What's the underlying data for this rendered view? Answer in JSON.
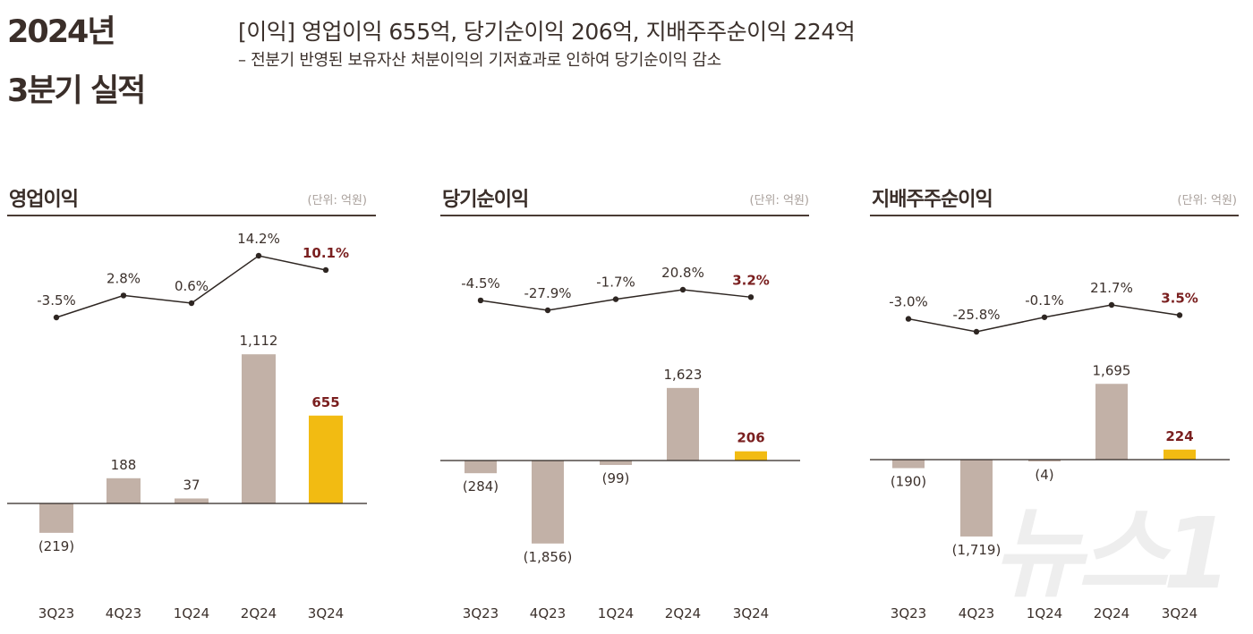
{
  "header": {
    "title_line1": "2024년",
    "title_line2": "3분기 실적",
    "headline": "[이익] 영업이익 655억,  당기순이익 206억, 지배주주순이익 224억",
    "subline": "– 전분기 반영된 보유자산 처분이익의 기저효과로 인하여 당기순이익 감소"
  },
  "colors": {
    "bar": "#c2b1a7",
    "highlight_bar": "#f2bb12",
    "highlight_text": "#7a1f1f",
    "line": "#2e2622",
    "rule": "#4a3b34"
  },
  "chart_data": [
    {
      "type": "bar",
      "title": "영업이익",
      "unit": "(단위: 억원)",
      "categories": [
        "3Q23",
        "4Q23",
        "1Q24",
        "2Q24",
        "3Q24"
      ],
      "values": [
        -219,
        188,
        37,
        1112,
        655
      ],
      "value_labels": [
        "(219)",
        "188",
        "37",
        "1,112",
        "655"
      ],
      "margin_line": [
        -3.5,
        2.8,
        0.6,
        14.2,
        10.1
      ],
      "margin_labels": [
        "-3.5%",
        "2.8%",
        "0.6%",
        "14.2%",
        "10.1%"
      ],
      "highlight_index": 4
    },
    {
      "type": "bar",
      "title": "당기순이익",
      "unit": "(단위: 억원)",
      "categories": [
        "3Q23",
        "4Q23",
        "1Q24",
        "2Q24",
        "3Q24"
      ],
      "values": [
        -284,
        -1856,
        -99,
        1623,
        206
      ],
      "value_labels": [
        "(284)",
        "(1,856)",
        "(99)",
        "1,623",
        "206"
      ],
      "margin_line": [
        -4.5,
        -27.9,
        -1.7,
        20.8,
        3.2
      ],
      "margin_labels": [
        "-4.5%",
        "-27.9%",
        "-1.7%",
        "20.8%",
        "3.2%"
      ],
      "highlight_index": 4
    },
    {
      "type": "bar",
      "title": "지배주주순이익",
      "unit": "(단위: 억원)",
      "categories": [
        "3Q23",
        "4Q23",
        "1Q24",
        "2Q24",
        "3Q24"
      ],
      "values": [
        -190,
        -1719,
        -4,
        1695,
        224
      ],
      "value_labels": [
        "(190)",
        "(1,719)",
        "(4)",
        "1,695",
        "224"
      ],
      "margin_line": [
        -3.0,
        -25.8,
        -0.1,
        21.7,
        3.5
      ],
      "margin_labels": [
        "-3.0%",
        "-25.8%",
        "-0.1%",
        "21.7%",
        "3.5%"
      ],
      "highlight_index": 4
    }
  ],
  "watermark": "뉴스1"
}
